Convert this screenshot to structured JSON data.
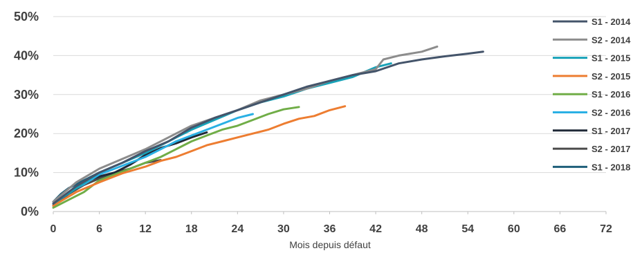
{
  "chart_data": {
    "type": "line",
    "title": "",
    "xlabel": "Mois depuis défaut",
    "ylabel": "",
    "xlim": [
      0,
      72
    ],
    "ylim": [
      0,
      50
    ],
    "x_ticks": [
      "0",
      "6",
      "12",
      "18",
      "24",
      "30",
      "36",
      "42",
      "48",
      "54",
      "60",
      "66",
      "72"
    ],
    "y_ticks": [
      "0%",
      "10%",
      "20%",
      "30%",
      "40%",
      "50%"
    ],
    "grid": "horizontal",
    "legend_position": "right",
    "series": [
      {
        "name": "S1 - 2014",
        "color": "#44546a",
        "x": [
          0,
          3,
          6,
          9,
          12,
          15,
          18,
          21,
          24,
          27,
          30,
          33,
          36,
          39,
          42,
          45,
          48,
          51,
          54,
          56
        ],
        "y": [
          2,
          6.5,
          10,
          12.5,
          15.5,
          18,
          21.5,
          24,
          26,
          28,
          30,
          32,
          33.5,
          35,
          36,
          38,
          39,
          39.8,
          40.5,
          41
        ]
      },
      {
        "name": "S2 - 2014",
        "color": "#8c8c8c",
        "x": [
          0,
          3,
          6,
          9,
          12,
          15,
          18,
          21,
          24,
          27,
          30,
          33,
          36,
          39,
          42,
          43,
          45,
          48,
          50
        ],
        "y": [
          2.5,
          7.5,
          11,
          13.5,
          16,
          19,
          22,
          24,
          26,
          28.5,
          30,
          31.5,
          33.5,
          35,
          36.5,
          39,
          40,
          41,
          42.3
        ]
      },
      {
        "name": "S1 - 2015",
        "color": "#17a2b8",
        "x": [
          0,
          3,
          6,
          9,
          12,
          15,
          18,
          21,
          24,
          27,
          30,
          33,
          36,
          39,
          42,
          44
        ],
        "y": [
          2,
          6,
          10,
          12.5,
          15,
          18,
          21,
          23.5,
          26,
          28,
          29.5,
          31.5,
          33,
          34.5,
          37,
          38
        ]
      },
      {
        "name": "S2 - 2015",
        "color": "#ed7d31",
        "x": [
          0,
          3,
          6,
          9,
          12,
          14,
          16,
          18,
          20,
          22,
          24,
          26,
          28,
          30,
          32,
          34,
          36,
          38
        ],
        "y": [
          1.5,
          5,
          7.5,
          9.8,
          11.5,
          13,
          14,
          15.5,
          17,
          18,
          19,
          20,
          21,
          22.5,
          23.8,
          24.5,
          26,
          27
        ]
      },
      {
        "name": "S1 - 2016",
        "color": "#70ad47",
        "x": [
          0,
          2,
          4,
          6,
          8,
          10,
          12,
          14,
          16,
          18,
          20,
          22,
          24,
          26,
          28,
          30,
          32
        ],
        "y": [
          1,
          3,
          5,
          8,
          9.5,
          11,
          12.5,
          14,
          16,
          18,
          19.5,
          21,
          22,
          23.5,
          25,
          26.2,
          26.8
        ]
      },
      {
        "name": "S2 - 2016",
        "color": "#2ab0e4",
        "x": [
          0,
          2,
          4,
          6,
          8,
          10,
          12,
          14,
          16,
          18,
          20,
          22,
          24,
          26
        ],
        "y": [
          2,
          5,
          7,
          9.5,
          11,
          12.5,
          14,
          16,
          18,
          19.5,
          21,
          22.5,
          24,
          25
        ]
      },
      {
        "name": "S1 - 2017",
        "color": "#1f2937",
        "x": [
          0,
          2,
          4,
          6,
          8,
          10,
          12,
          14,
          16,
          18,
          20
        ],
        "y": [
          1.5,
          5,
          7.5,
          9,
          10,
          12,
          14.5,
          16.3,
          17.5,
          19,
          20.3
        ]
      },
      {
        "name": "S2 - 2017",
        "color": "#4a4a4a",
        "x": [
          0,
          2,
          4,
          6,
          8,
          10,
          12,
          14
        ],
        "y": [
          1.5,
          4.5,
          6.8,
          8.5,
          10,
          11,
          12.5,
          13.2
        ]
      },
      {
        "name": "S1 - 2018",
        "color": "#1f5f7a",
        "x": [
          0,
          1,
          2,
          3,
          4,
          5,
          6
        ],
        "y": [
          2.5,
          4.5,
          6,
          7,
          8,
          9,
          10
        ]
      }
    ]
  }
}
